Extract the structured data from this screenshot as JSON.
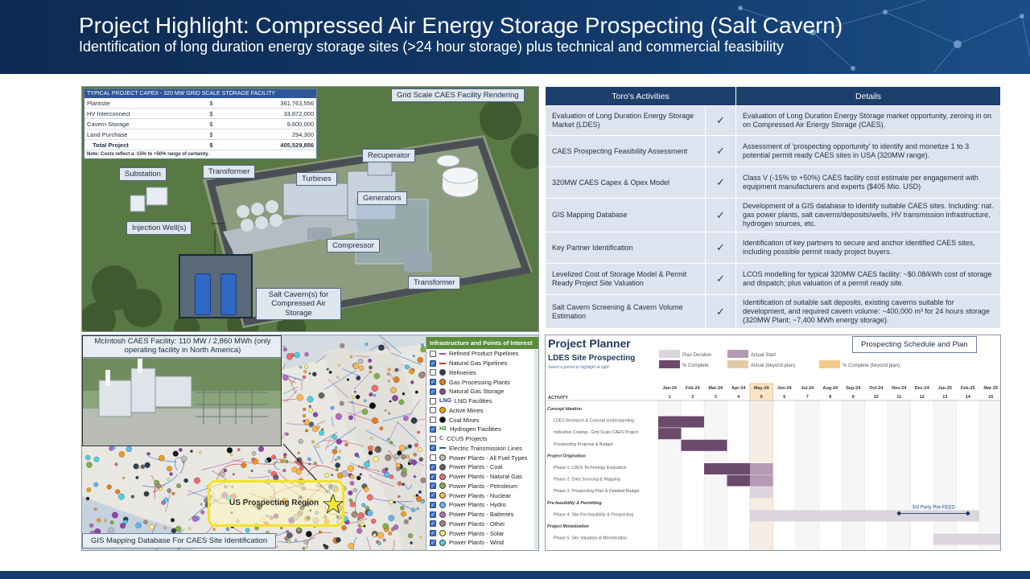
{
  "header": {
    "title": "Project Highlight: Compressed Air Energy Storage Prospecting (Salt Cavern)",
    "subtitle": "Identification of long duration energy storage sites (>24 hour storage) plus technical and commercial feasibility"
  },
  "rendering": {
    "label": "Grid Scale CAES Facility Rendering",
    "capex": {
      "title": "TYPICAL PROJECT CAPEX - 320 MW GRID SCALE STORAGE FACILITY",
      "rows": [
        {
          "item": "Plantsite",
          "cur": "$",
          "amount": "361,763,556"
        },
        {
          "item": "HV Interconnect",
          "cur": "$",
          "amount": "33,872,000"
        },
        {
          "item": "Cavern Storage",
          "cur": "$",
          "amount": "9,600,000"
        },
        {
          "item": "Land Purchase",
          "cur": "$",
          "amount": "294,300"
        }
      ],
      "total": {
        "item": "Total Project",
        "cur": "$",
        "amount": "405,529,856"
      },
      "note": "Note: Costs reflect a -15% to +50% range of certainty."
    },
    "tags": {
      "substation": "Substation",
      "transformer_top": "Transformer",
      "turbines": "Turbines",
      "recuperator": "Recuperator",
      "generators": "Generators",
      "injection": "Injection Well(s)",
      "compressor": "Compressor",
      "transformer_bottom": "Transformer",
      "cavern": "Salt Cavern(s) for Compressed Air Storage"
    }
  },
  "activities": {
    "headers": {
      "activity": "Toro's Activities",
      "details": "Details"
    },
    "check_glyph": "✓",
    "rows": [
      {
        "activity": "Evaluation of Long Duration Energy Storage Market (LDES)",
        "details": "Evaluation of Long Duration Energy Storage market opportunity, zeroing in on on Compressed Air Energy Storage (CAES)."
      },
      {
        "activity": "CAES Prospecting Feasibility Assessment",
        "details": "Assessment of 'prospecting opportunity' to identify and monetize 1 to 3 potential permit ready CAES sites in USA (320MW range)."
      },
      {
        "activity": "320MW CAES Capex & Opex Model",
        "details": "Class V (-15% to +50%) CAES facility cost estimate per engagement with equipment manufacturers and experts ($405 Mio. USD)"
      },
      {
        "activity": "GIS Mapping Database",
        "details": "Development of a GIS database to identify suitable CAES sites. Including: nat. gas power plants, salt caverns/deposits/wells, HV transmission infrastructure, hydrogen sources, etc."
      },
      {
        "activity": "Key Partner Identification",
        "details": "Identification of key partners to secure and anchor identified CAES sites, including possible permit ready project buyers."
      },
      {
        "activity": "Levelized Cost of Storage Model & Permit Ready Project Site Valuation",
        "details": "LCOS modelling for typical 320MW CAES facility: ~$0.08/kWh cost of storage and dispatch; plus valuation of a permit ready site."
      },
      {
        "activity": "Salt Cavern Screening & Cavern Volume Estimation",
        "details": "Identification of suitable salt deposits, existing caverns suitable for development, and required cavern volume: ~400,000 m³ for 24 hours storage (320MW Plant; ~7,400 MWh energy storage)."
      }
    ]
  },
  "gis": {
    "photo_label": "McIntosh CAES Facility: 110 MW / 2,860 MWh (only operating facility in North America)",
    "region_label": "US Prospecting Region",
    "bottom_label": "GIS Mapping Database For CAES Site Identification",
    "legend_title": "Infrastructure and Points of Interest",
    "legend": [
      {
        "label": "Refined Product Pipelines",
        "checked": false,
        "color": "#9b59b6",
        "sym": "line"
      },
      {
        "label": "Natural Gas Pipelines",
        "checked": true,
        "color": "#c0392b",
        "sym": "line"
      },
      {
        "label": "Refineries",
        "checked": false,
        "color": "#2c3e50",
        "sym": "dot"
      },
      {
        "label": "Gas Processing Plants",
        "checked": true,
        "color": "#e67e22",
        "sym": "dot"
      },
      {
        "label": "Natural Gas Storage",
        "checked": true,
        "color": "#8e44ad",
        "sym": "dot"
      },
      {
        "label": "LNG Facilities",
        "checked": false,
        "color": "#1f3a93",
        "sym": "lng"
      },
      {
        "label": "Active Mines",
        "checked": false,
        "color": "#f39c12",
        "sym": "dot"
      },
      {
        "label": "Coal Mines",
        "checked": false,
        "color": "#111111",
        "sym": "dot"
      },
      {
        "label": "Hydrogen Facilities",
        "checked": true,
        "color": "#2e7d32",
        "sym": "h2"
      },
      {
        "label": "CCUS Projects",
        "checked": false,
        "color": "#6d4c41",
        "sym": "c"
      },
      {
        "label": "Electric Transmission Lines",
        "checked": true,
        "color": "#1565c0",
        "sym": "line"
      },
      {
        "label": "Power Plants - All Fuel Types",
        "checked": false,
        "color": "#bdbdbd",
        "sym": "dot"
      },
      {
        "label": "Power Plants - Coal",
        "checked": true,
        "color": "#616161",
        "sym": "dot"
      },
      {
        "label": "Power Plants - Natural Gas",
        "checked": true,
        "color": "#ef6c6c",
        "sym": "dot"
      },
      {
        "label": "Power Plants - Petroleum",
        "checked": true,
        "color": "#7cb342",
        "sym": "dot"
      },
      {
        "label": "Power Plants - Nuclear",
        "checked": true,
        "color": "#ffb74d",
        "sym": "dot"
      },
      {
        "label": "Power Plants - Hydro",
        "checked": true,
        "color": "#64b5f6",
        "sym": "dot"
      },
      {
        "label": "Power Plants - Batteries",
        "checked": true,
        "color": "#ba68c8",
        "sym": "dot"
      },
      {
        "label": "Power Plants - Other",
        "checked": true,
        "color": "#a1887f",
        "sym": "dot"
      },
      {
        "label": "Power Plants - Solar",
        "checked": true,
        "color": "#fff176",
        "sym": "dot"
      },
      {
        "label": "Power Plants - Wind",
        "checked": true,
        "color": "#4dd0e1",
        "sym": "dot"
      }
    ]
  },
  "planner": {
    "title": "Project Planner",
    "subtitle": "LDES Site Prospecting",
    "hint": "Select a period to highlight at right.",
    "label": "Prospecting Schedule and Plan",
    "legend": {
      "plan_duration": "Plan Duration",
      "actual_start": "Actual Start",
      "pct_complete": "% Complete",
      "actual_beyond": "Actual (beyond plan)",
      "pct_beyond": "% Complete (beyond plan)"
    },
    "activity_header": "ACTIVITY",
    "highlight_period": 5,
    "colors": {
      "complete": "#6b4a6b",
      "actual_start": "#b59ab5",
      "plan": "#ddd5dd",
      "beyond": "#e4c9a8",
      "highlight": "#f5c98a"
    },
    "months": [
      "Jan-24",
      "Feb-24",
      "Mar-24",
      "Apr-24",
      "May-24",
      "Jun-24",
      "Jul-24",
      "Aug-24",
      "Sep-24",
      "Oct-24",
      "Nov-24",
      "Dec-24",
      "Jan-25",
      "Feb-25",
      "Mar-25"
    ],
    "periods": [
      "1",
      "2",
      "3",
      "4",
      "5",
      "6",
      "7",
      "8",
      "9",
      "10",
      "11",
      "12",
      "13",
      "14",
      "15"
    ],
    "rows": [
      {
        "label": "Concept Ideation",
        "kind": "section"
      },
      {
        "label": "LDES Research & Concept Understanding",
        "kind": "task",
        "start": 1,
        "duration": 2,
        "status": "complete"
      },
      {
        "label": "Indicative Costing - Grid Scale CAES Project",
        "kind": "task",
        "start": 1,
        "duration": 1,
        "status": "complete"
      },
      {
        "label": "Prospecting Proposal & Budget",
        "kind": "task",
        "start": 2,
        "duration": 2,
        "status": "complete"
      },
      {
        "label": "Project Origination",
        "kind": "section"
      },
      {
        "label": "Phase 1: LDES Technology Evaluation",
        "kind": "task",
        "start": 3,
        "duration": 3,
        "status": "complete",
        "actual_start": 5
      },
      {
        "label": "Phase 2: Data Sourcing & Mapping",
        "kind": "task",
        "start": 4,
        "duration": 2,
        "status": "complete",
        "actual_start": 5
      },
      {
        "label": "Phase 3: Prospecting Plan & Detailed Budget",
        "kind": "task",
        "start": 5,
        "duration": 1,
        "status": "plan"
      },
      {
        "label": "Pre-feasibility & Permitting",
        "kind": "section"
      },
      {
        "label": "Phase 4: Site Pre-feasibility & Prospecting",
        "kind": "task",
        "start": 5,
        "duration": 10,
        "status": "plan",
        "milestone_label": "3rd Party Pre-FEED",
        "milestones": [
          11,
          14
        ]
      },
      {
        "label": "Project Monetization",
        "kind": "section"
      },
      {
        "label": "Phase 5: Site Valuation & Monetization",
        "kind": "task",
        "start": 13,
        "duration": 3,
        "status": "plan"
      }
    ]
  }
}
